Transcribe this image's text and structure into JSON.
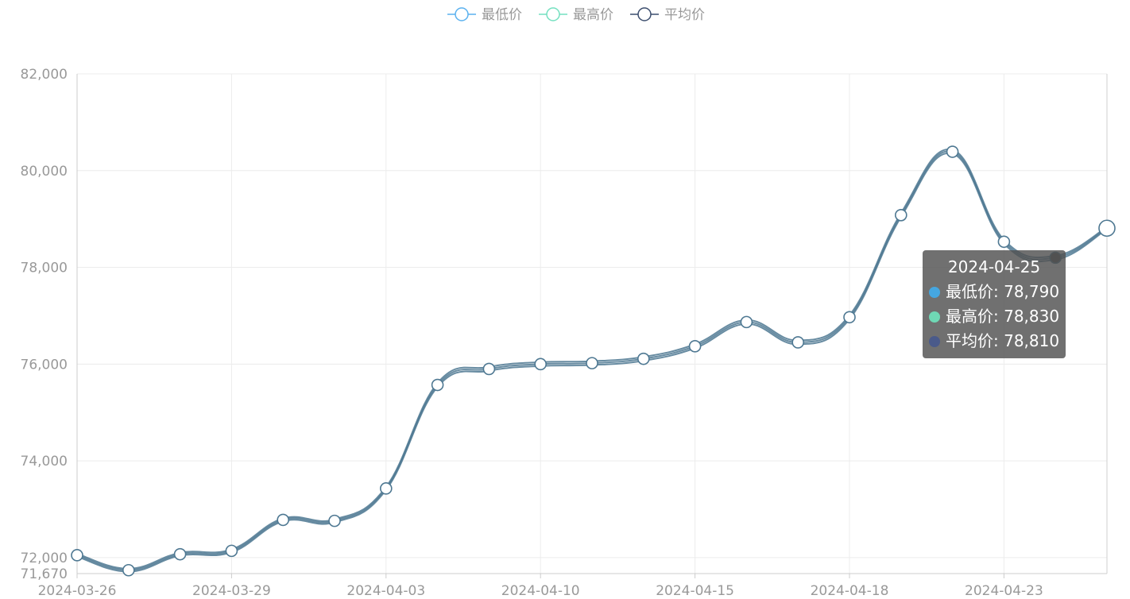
{
  "chart_data": {
    "type": "line",
    "title": "",
    "xlabel": "",
    "ylabel": "",
    "ylim": [
      71670,
      82000
    ],
    "y_ticks": [
      72000,
      74000,
      76000,
      78000,
      80000,
      82000
    ],
    "y_tick_labels": [
      "72,000",
      "74,000",
      "76,000",
      "78,000",
      "80,000",
      "82,000"
    ],
    "y_min_label": "71,670",
    "x": [
      "2024-03-26",
      "2024-03-27",
      "2024-03-28",
      "2024-03-29",
      "2024-03-31",
      "2024-04-01",
      "2024-04-03",
      "2024-04-07",
      "2024-04-08",
      "2024-04-10",
      "2024-04-11",
      "2024-04-12",
      "2024-04-15",
      "2024-04-16",
      "2024-04-17",
      "2024-04-18",
      "2024-04-19",
      "2024-04-21",
      "2024-04-23",
      "2024-04-24",
      "2024-04-25"
    ],
    "x_tick_labels": [
      "2024-03-26",
      "2024-03-29",
      "2024-04-03",
      "2024-04-10",
      "2024-04-15",
      "2024-04-18",
      "2024-04-23"
    ],
    "x_tick_every": 3,
    "series": [
      {
        "name": "最低价",
        "color": "#5ab1ef",
        "values": [
          72020,
          71710,
          72040,
          72110,
          72750,
          72730,
          73400,
          75530,
          75860,
          75960,
          75980,
          76070,
          76330,
          76830,
          76410,
          76930,
          79040,
          80350,
          78490,
          78160,
          78790
        ]
      },
      {
        "name": "最高价",
        "color": "#74e0c0",
        "values": [
          72080,
          71770,
          72100,
          72170,
          72810,
          72790,
          73460,
          75610,
          75940,
          76040,
          76060,
          76150,
          76410,
          76910,
          76490,
          77010,
          79120,
          80430,
          78570,
          78240,
          78830
        ]
      },
      {
        "name": "平均价",
        "color": "#3c4e6e",
        "values": [
          72050,
          71740,
          72070,
          72140,
          72780,
          72760,
          73430,
          75570,
          75900,
          76000,
          76020,
          76110,
          76370,
          76870,
          76450,
          76970,
          79080,
          80390,
          78530,
          78200,
          78810
        ]
      }
    ],
    "grid": true,
    "legend": "top-center",
    "tooltip": {
      "title": "2024-04-25",
      "rows": [
        {
          "label": "最低价",
          "value": "78,790",
          "color": "#45a6e0"
        },
        {
          "label": "最高价",
          "value": "78,830",
          "color": "#6fd8b5"
        },
        {
          "label": "平均价",
          "value": "78,810",
          "color": "#4a5a8a"
        }
      ]
    },
    "line_color": "#4e7892"
  }
}
